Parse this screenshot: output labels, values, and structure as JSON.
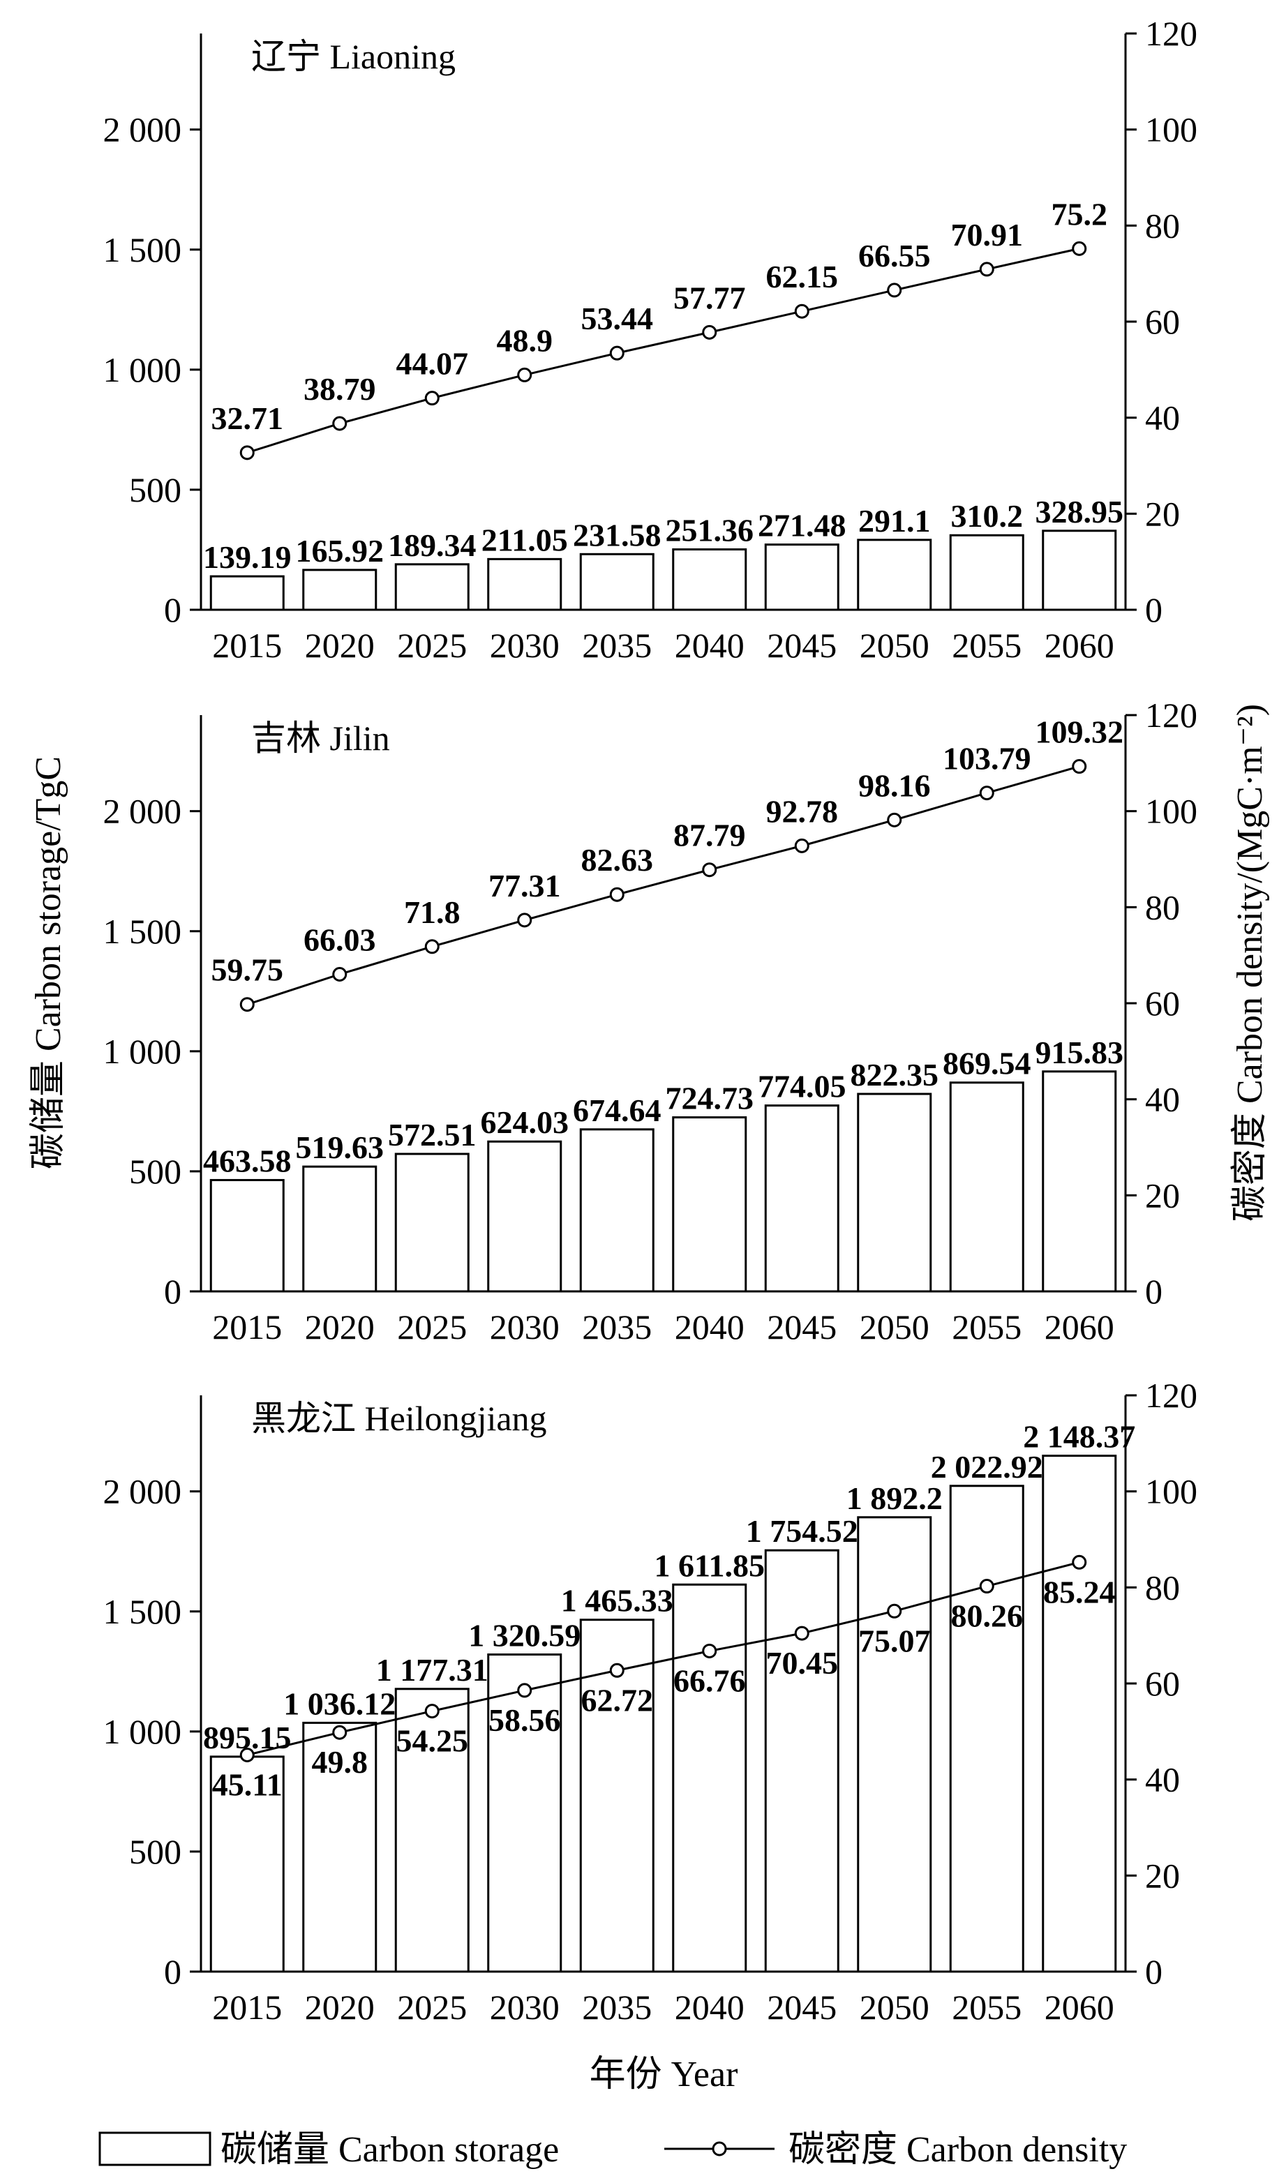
{
  "y_left_title": "碳储量  Carbon storage/TgC",
  "y_right_title": "碳密度  Carbon density/(MgC·m⁻²)",
  "x_title": "年份  Year",
  "legend": {
    "storage_label": "碳储量  Carbon storage",
    "density_label": "碳密度  Carbon density"
  },
  "chart_data": [
    {
      "type": "bar",
      "title": "辽宁  Liaoning",
      "categories": [
        "2015",
        "2020",
        "2025",
        "2030",
        "2035",
        "2040",
        "2045",
        "2050",
        "2055",
        "2060"
      ],
      "series": [
        {
          "name": "Carbon storage",
          "axis": "left",
          "values": [
            139.19,
            165.92,
            189.34,
            211.05,
            231.58,
            251.36,
            271.48,
            291.1,
            310.2,
            328.95
          ],
          "labels": [
            "139.19",
            "165.92",
            "189.34",
            "211.05",
            "231.58",
            "251.36",
            "271.48",
            "291.1",
            "310.2",
            "328.95"
          ]
        },
        {
          "name": "Carbon density",
          "axis": "right",
          "values": [
            32.71,
            38.79,
            44.07,
            48.9,
            53.44,
            57.77,
            62.15,
            66.55,
            70.91,
            75.2
          ],
          "labels": [
            "32.71",
            "38.79",
            "44.07",
            "48.9",
            "53.44",
            "57.77",
            "62.15",
            "66.55",
            "70.91",
            "75.2"
          ]
        }
      ],
      "ylim_left": [
        0,
        2400
      ],
      "yticks_left": [
        "0",
        "500",
        "1 000",
        "1 500",
        "2 000"
      ],
      "ylim_right": [
        0,
        120
      ],
      "yticks_right": [
        "0",
        "20",
        "40",
        "60",
        "80",
        "100",
        "120"
      ]
    },
    {
      "type": "bar",
      "title": "吉林  Jilin",
      "categories": [
        "2015",
        "2020",
        "2025",
        "2030",
        "2035",
        "2040",
        "2045",
        "2050",
        "2055",
        "2060"
      ],
      "series": [
        {
          "name": "Carbon storage",
          "axis": "left",
          "values": [
            463.58,
            519.63,
            572.51,
            624.03,
            674.64,
            724.73,
            774.05,
            822.35,
            869.54,
            915.83
          ],
          "labels": [
            "463.58",
            "519.63",
            "572.51",
            "624.03",
            "674.64",
            "724.73",
            "774.05",
            "822.35",
            "869.54",
            "915.83"
          ]
        },
        {
          "name": "Carbon density",
          "axis": "right",
          "values": [
            59.75,
            66.03,
            71.8,
            77.31,
            82.63,
            87.79,
            92.78,
            98.16,
            103.79,
            109.32
          ],
          "labels": [
            "59.75",
            "66.03",
            "71.8",
            "77.31",
            "82.63",
            "87.79",
            "92.78",
            "98.16",
            "103.79",
            "109.32"
          ]
        }
      ],
      "ylim_left": [
        0,
        2400
      ],
      "yticks_left": [
        "0",
        "500",
        "1 000",
        "1 500",
        "2 000"
      ],
      "ylim_right": [
        0,
        120
      ],
      "yticks_right": [
        "0",
        "20",
        "40",
        "60",
        "80",
        "100",
        "120"
      ]
    },
    {
      "type": "bar",
      "title": "黑龙江  Heilongjiang",
      "categories": [
        "2015",
        "2020",
        "2025",
        "2030",
        "2035",
        "2040",
        "2045",
        "2050",
        "2055",
        "2060"
      ],
      "series": [
        {
          "name": "Carbon storage",
          "axis": "left",
          "values": [
            895.15,
            1036.12,
            1177.31,
            1320.59,
            1465.33,
            1611.85,
            1754.52,
            1892.2,
            2022.92,
            2148.37
          ],
          "labels": [
            "895.15",
            "1 036.12",
            "1 177.31",
            "1 320.59",
            "1 465.33",
            "1 611.85",
            "1 754.52",
            "1 892.2",
            "2 022.92",
            "2 148.37"
          ]
        },
        {
          "name": "Carbon density",
          "axis": "right",
          "values": [
            45.11,
            49.8,
            54.25,
            58.56,
            62.72,
            66.76,
            70.45,
            75.07,
            80.26,
            85.24
          ],
          "labels": [
            "45.11",
            "49.8",
            "54.25",
            "58.56",
            "62.72",
            "66.76",
            "70.45",
            "75.07",
            "80.26",
            "85.24"
          ]
        }
      ],
      "ylim_left": [
        0,
        2400
      ],
      "yticks_left": [
        "0",
        "500",
        "1 000",
        "1 500",
        "2 000"
      ],
      "ylim_right": [
        0,
        120
      ],
      "yticks_right": [
        "0",
        "20",
        "40",
        "60",
        "80",
        "100",
        "120"
      ]
    }
  ]
}
